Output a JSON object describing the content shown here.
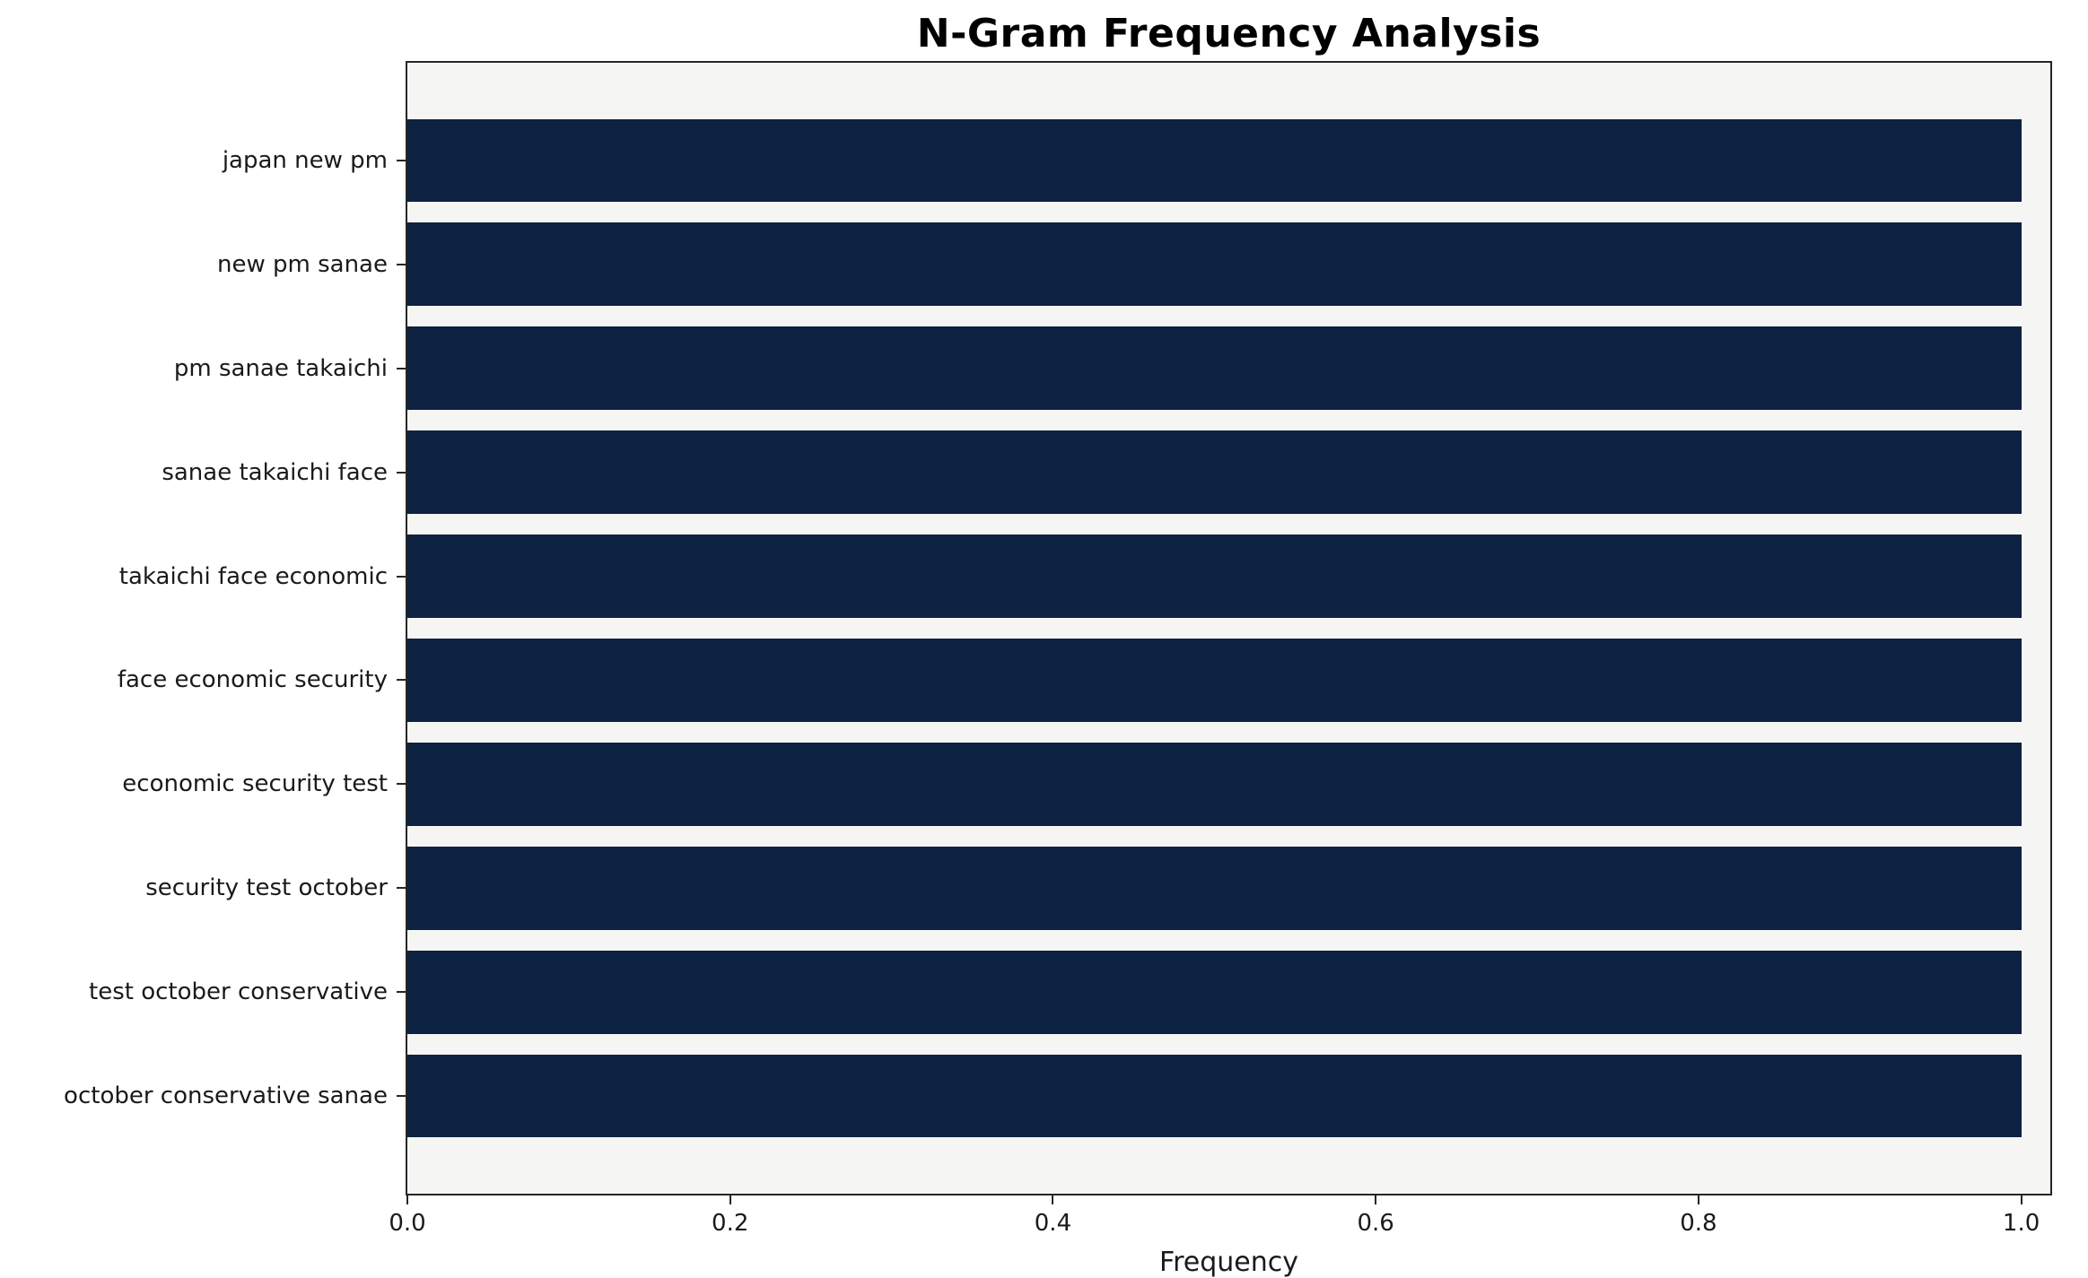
{
  "chart_data": {
    "type": "bar",
    "orientation": "horizontal",
    "title": "N-Gram Frequency Analysis",
    "xlabel": "Frequency",
    "ylabel": "",
    "categories": [
      "japan new pm",
      "new pm sanae",
      "pm sanae takaichi",
      "sanae takaichi face",
      "takaichi face economic",
      "face economic security",
      "economic security test",
      "security test october",
      "test october conservative",
      "october conservative sanae"
    ],
    "values": [
      1.0,
      1.0,
      1.0,
      1.0,
      1.0,
      1.0,
      1.0,
      1.0,
      1.0,
      1.0
    ],
    "xlim": [
      0,
      1.018
    ],
    "ylim": [
      -0.94,
      9.94
    ],
    "y_span_units": 10.88,
    "y_pad_units": 0.94,
    "bar_height_units": 0.8,
    "xtick_values": [
      0.0,
      0.2,
      0.4,
      0.6,
      0.8,
      1.0
    ],
    "xtick_labels": [
      "0.0",
      "0.2",
      "0.4",
      "0.6",
      "0.8",
      "1.0"
    ],
    "grid": false,
    "legend": "none",
    "colors": {
      "bar": "#0d2240",
      "plot_bg": "#f5f5f3",
      "figure_bg": "#ffffff",
      "spine": "#262626",
      "text": "#1a1a1a"
    }
  }
}
